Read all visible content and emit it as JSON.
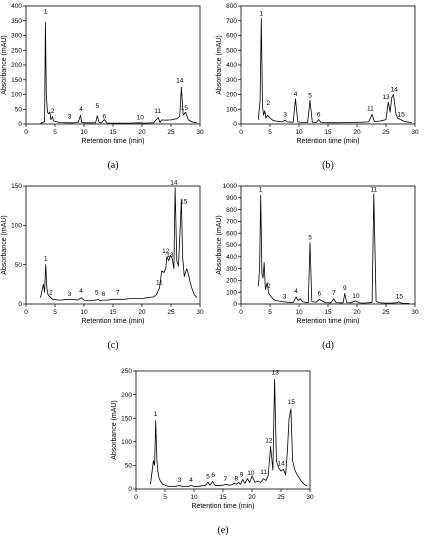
{
  "chart_data": [
    {
      "type": "line",
      "panel_label": "(a)",
      "xlabel": "Retention time (min)",
      "ylabel": "Absorbance (mAU)",
      "xlim": [
        0,
        30
      ],
      "ylim": [
        0,
        400
      ],
      "xticks": [
        0,
        5,
        10,
        15,
        20,
        25,
        30
      ],
      "yticks": [
        0,
        50,
        100,
        150,
        200,
        250,
        300,
        350,
        400
      ],
      "x": [
        2.5,
        3.0,
        3.2,
        3.35,
        3.5,
        3.7,
        3.9,
        4.1,
        4.3,
        4.55,
        4.8,
        5.2,
        5.6,
        6.0,
        7.0,
        7.5,
        8.0,
        9.0,
        9.4,
        9.6,
        10.0,
        11.0,
        12.0,
        12.3,
        12.6,
        13.0,
        13.5,
        14.0,
        16.0,
        18.0,
        19.5,
        20.5,
        22.0,
        22.8,
        23.1,
        23.4,
        24.0,
        25.0,
        26.0,
        26.5,
        26.8,
        27.1,
        27.5,
        28.0,
        28.5,
        29.0,
        29.5
      ],
      "y": [
        2,
        6,
        8,
        345,
        100,
        40,
        35,
        40,
        15,
        25,
        10,
        8,
        6,
        5,
        4,
        4,
        4,
        5,
        30,
        5,
        4,
        4,
        4,
        28,
        5,
        4,
        15,
        3,
        3,
        3,
        4,
        3,
        4,
        22,
        5,
        14,
        13,
        14,
        18,
        25,
        125,
        30,
        40,
        14,
        8,
        5,
        4
      ],
      "peak_labels": [
        {
          "label": "1",
          "x": 3.4,
          "y": 375
        },
        {
          "label": "2",
          "x": 4.6,
          "y": 38
        },
        {
          "label": "3",
          "x": 7.5,
          "y": 18
        },
        {
          "label": "4",
          "x": 9.5,
          "y": 44
        },
        {
          "label": "5",
          "x": 12.3,
          "y": 55
        },
        {
          "label": "6",
          "x": 13.5,
          "y": 18
        },
        {
          "label": "10",
          "x": 19.7,
          "y": 16
        },
        {
          "label": "11",
          "x": 22.7,
          "y": 37
        },
        {
          "label": "14",
          "x": 26.5,
          "y": 140
        },
        {
          "label": "15",
          "x": 27.3,
          "y": 48
        }
      ]
    },
    {
      "type": "line",
      "panel_label": "(b)",
      "xlabel": "Retention time (min)",
      "ylabel": "Absorbance (mAU)",
      "xlim": [
        0,
        30
      ],
      "ylim": [
        0,
        800
      ],
      "xticks": [
        0,
        5,
        10,
        15,
        20,
        25,
        30
      ],
      "yticks": [
        0,
        100,
        200,
        300,
        400,
        500,
        600,
        700,
        800
      ],
      "x": [
        3.0,
        3.3,
        3.5,
        3.7,
        3.9,
        4.1,
        4.3,
        4.6,
        5.0,
        5.5,
        6.0,
        7.0,
        7.6,
        8.0,
        9.0,
        9.4,
        9.8,
        10.5,
        11.5,
        11.9,
        12.3,
        13.0,
        13.4,
        13.8,
        15.0,
        17.0,
        19.0,
        21.0,
        22.0,
        22.6,
        23.0,
        24.0,
        25.0,
        25.4,
        25.7,
        26.0,
        26.3,
        26.7,
        27.0,
        27.5,
        28.0,
        28.5,
        29.0,
        29.5
      ],
      "y": [
        30,
        160,
        715,
        120,
        60,
        90,
        40,
        60,
        40,
        25,
        20,
        15,
        25,
        14,
        12,
        170,
        14,
        10,
        10,
        160,
        12,
        10,
        30,
        10,
        9,
        9,
        10,
        12,
        14,
        65,
        16,
        20,
        30,
        150,
        80,
        180,
        200,
        70,
        40,
        30,
        20,
        15,
        12,
        10
      ],
      "peak_labels": [
        {
          "label": "1",
          "x": 3.5,
          "y": 735
        },
        {
          "label": "2",
          "x": 4.7,
          "y": 130
        },
        {
          "label": "3",
          "x": 7.6,
          "y": 50
        },
        {
          "label": "4",
          "x": 9.4,
          "y": 190
        },
        {
          "label": "5",
          "x": 11.9,
          "y": 180
        },
        {
          "label": "6",
          "x": 13.4,
          "y": 50
        },
        {
          "label": "11",
          "x": 22.3,
          "y": 90
        },
        {
          "label": "13",
          "x": 25.0,
          "y": 170
        },
        {
          "label": "14",
          "x": 26.4,
          "y": 220
        },
        {
          "label": "15",
          "x": 27.6,
          "y": 50
        }
      ]
    },
    {
      "type": "line",
      "panel_label": "(c)",
      "xlabel": "Retention time (min)",
      "ylabel": "Absorbance (mAU)",
      "xlim": [
        0,
        30
      ],
      "ylim": [
        0,
        150
      ],
      "xticks": [
        0,
        5,
        10,
        15,
        20,
        25,
        30
      ],
      "yticks": [
        0,
        50,
        100,
        150
      ],
      "x": [
        2.5,
        3.0,
        3.2,
        3.4,
        3.6,
        3.8,
        4.0,
        4.3,
        4.6,
        5.0,
        5.5,
        6.0,
        7.0,
        8.0,
        9.0,
        9.5,
        10.0,
        11.0,
        12.0,
        12.4,
        12.8,
        13.2,
        14.0,
        15.0,
        16.0,
        17.0,
        18.0,
        19.0,
        20.0,
        21.0,
        22.0,
        22.5,
        23.0,
        23.4,
        23.8,
        24.1,
        24.3,
        24.6,
        24.9,
        25.2,
        25.5,
        25.7,
        26.0,
        26.3,
        26.6,
        26.8,
        27.0,
        27.3,
        27.7,
        28.0,
        28.3,
        28.6,
        29.0,
        29.5
      ],
      "y": [
        8,
        25,
        15,
        50,
        20,
        12,
        10,
        8,
        6,
        6,
        5,
        5,
        6,
        6,
        5,
        8,
        5,
        4,
        5,
        6,
        4,
        5,
        5,
        6,
        6,
        6,
        7,
        7,
        7,
        8,
        9,
        12,
        20,
        42,
        40,
        46,
        60,
        55,
        62,
        58,
        45,
        148,
        55,
        48,
        100,
        132,
        60,
        35,
        45,
        38,
        28,
        20,
        12,
        8
      ],
      "peak_labels": [
        {
          "label": "1",
          "x": 3.4,
          "y": 55
        },
        {
          "label": "2",
          "x": 4.3,
          "y": 12
        },
        {
          "label": "3",
          "x": 7.5,
          "y": 10
        },
        {
          "label": "4",
          "x": 9.5,
          "y": 14
        },
        {
          "label": "5",
          "x": 12.2,
          "y": 12
        },
        {
          "label": "6",
          "x": 13.4,
          "y": 10
        },
        {
          "label": "7",
          "x": 15.8,
          "y": 12
        },
        {
          "label": "11",
          "x": 23.0,
          "y": 25
        },
        {
          "label": "12",
          "x": 24.1,
          "y": 65
        },
        {
          "label": "13",
          "x": 24.8,
          "y": 60
        },
        {
          "label": "14",
          "x": 25.5,
          "y": 152
        },
        {
          "label": "15",
          "x": 27.2,
          "y": 128
        }
      ]
    },
    {
      "type": "line",
      "panel_label": "(d)",
      "xlabel": "Retention time (min)",
      "ylabel": "Absorbance (mAU)",
      "xlim": [
        0,
        30
      ],
      "ylim": [
        0,
        1000
      ],
      "xticks": [
        0,
        5,
        10,
        15,
        20,
        25,
        30
      ],
      "yticks": [
        0,
        100,
        200,
        300,
        400,
        500,
        600,
        700,
        800,
        900,
        1000
      ],
      "x": [
        3.0,
        3.2,
        3.4,
        3.6,
        3.8,
        4.0,
        4.2,
        4.5,
        4.8,
        5.2,
        5.6,
        6.0,
        6.5,
        7.0,
        8.0,
        9.0,
        9.5,
        9.8,
        10.2,
        10.6,
        11.0,
        11.6,
        11.9,
        12.2,
        13.0,
        13.5,
        14.5,
        15.5,
        16.0,
        16.4,
        17.0,
        17.6,
        17.9,
        18.2,
        19.0,
        19.8,
        20.4,
        21.0,
        22.0,
        22.6,
        22.9,
        23.3,
        24.0,
        25.0,
        26.0,
        26.8,
        27.2,
        27.6,
        28.0,
        29.0
      ],
      "y": [
        150,
        300,
        920,
        260,
        220,
        350,
        120,
        180,
        90,
        60,
        40,
        30,
        25,
        20,
        15,
        12,
        60,
        30,
        45,
        20,
        15,
        12,
        520,
        20,
        15,
        40,
        12,
        10,
        45,
        12,
        10,
        10,
        90,
        12,
        10,
        25,
        10,
        8,
        10,
        15,
        930,
        20,
        10,
        8,
        8,
        10,
        18,
        8,
        6,
        5
      ],
      "peak_labels": [
        {
          "label": "1",
          "x": 3.4,
          "y": 955
        },
        {
          "label": "2",
          "x": 4.8,
          "y": 135
        },
        {
          "label": "3",
          "x": 7.5,
          "y": 45
        },
        {
          "label": "4",
          "x": 9.5,
          "y": 95
        },
        {
          "label": "5",
          "x": 11.9,
          "y": 545
        },
        {
          "label": "6",
          "x": 13.5,
          "y": 70
        },
        {
          "label": "7",
          "x": 16.0,
          "y": 75
        },
        {
          "label": "9",
          "x": 17.9,
          "y": 120
        },
        {
          "label": "10",
          "x": 19.8,
          "y": 50
        },
        {
          "label": "11",
          "x": 22.9,
          "y": 955
        },
        {
          "label": "15",
          "x": 27.3,
          "y": 45
        }
      ]
    },
    {
      "type": "line",
      "panel_label": "(e)",
      "xlabel": "Retention time (min)",
      "ylabel": "Absorbance (mAU)",
      "xlim": [
        0,
        30
      ],
      "ylim": [
        0,
        250
      ],
      "xticks": [
        0,
        5,
        10,
        15,
        20,
        25,
        30
      ],
      "yticks": [
        0,
        50,
        100,
        150,
        200,
        250
      ],
      "x": [
        2.5,
        3.0,
        3.2,
        3.4,
        3.6,
        3.8,
        4.0,
        4.3,
        4.6,
        5.0,
        5.5,
        6.0,
        6.5,
        7.0,
        7.5,
        8.0,
        9.0,
        9.5,
        10.0,
        11.0,
        12.0,
        12.4,
        12.8,
        13.2,
        13.6,
        14.0,
        15.0,
        15.6,
        16.0,
        16.5,
        17.0,
        17.3,
        17.7,
        18.0,
        18.4,
        18.8,
        19.2,
        19.6,
        20.0,
        20.5,
        21.0,
        21.5,
        22.0,
        22.4,
        22.8,
        23.2,
        23.6,
        23.9,
        24.2,
        24.6,
        25.0,
        25.4,
        25.8,
        26.1,
        26.4,
        26.7,
        27.0,
        27.4,
        27.8,
        28.2,
        28.6,
        29.0,
        29.5
      ],
      "y": [
        10,
        60,
        50,
        145,
        60,
        35,
        22,
        15,
        10,
        8,
        6,
        5,
        5,
        6,
        8,
        5,
        5,
        8,
        5,
        6,
        8,
        14,
        8,
        16,
        8,
        7,
        8,
        10,
        8,
        9,
        12,
        10,
        14,
        10,
        20,
        12,
        22,
        14,
        28,
        14,
        16,
        14,
        22,
        18,
        28,
        90,
        40,
        232,
        60,
        45,
        38,
        42,
        30,
        80,
        150,
        170,
        60,
        40,
        30,
        22,
        15,
        10,
        6
      ],
      "peak_labels": [
        {
          "label": "1",
          "x": 3.4,
          "y": 155
        },
        {
          "label": "3",
          "x": 7.5,
          "y": 15
        },
        {
          "label": "4",
          "x": 9.5,
          "y": 15
        },
        {
          "label": "5",
          "x": 12.4,
          "y": 22
        },
        {
          "label": "6",
          "x": 13.3,
          "y": 25
        },
        {
          "label": "7",
          "x": 15.4,
          "y": 17
        },
        {
          "label": "8",
          "x": 17.3,
          "y": 18
        },
        {
          "label": "9",
          "x": 18.2,
          "y": 26
        },
        {
          "label": "10",
          "x": 19.8,
          "y": 30
        },
        {
          "label": "11",
          "x": 22.0,
          "y": 32
        },
        {
          "label": "12",
          "x": 22.9,
          "y": 98
        },
        {
          "label": "13",
          "x": 24.0,
          "y": 243
        },
        {
          "label": "14",
          "x": 25.0,
          "y": 50
        },
        {
          "label": "15",
          "x": 26.8,
          "y": 180
        }
      ]
    }
  ]
}
